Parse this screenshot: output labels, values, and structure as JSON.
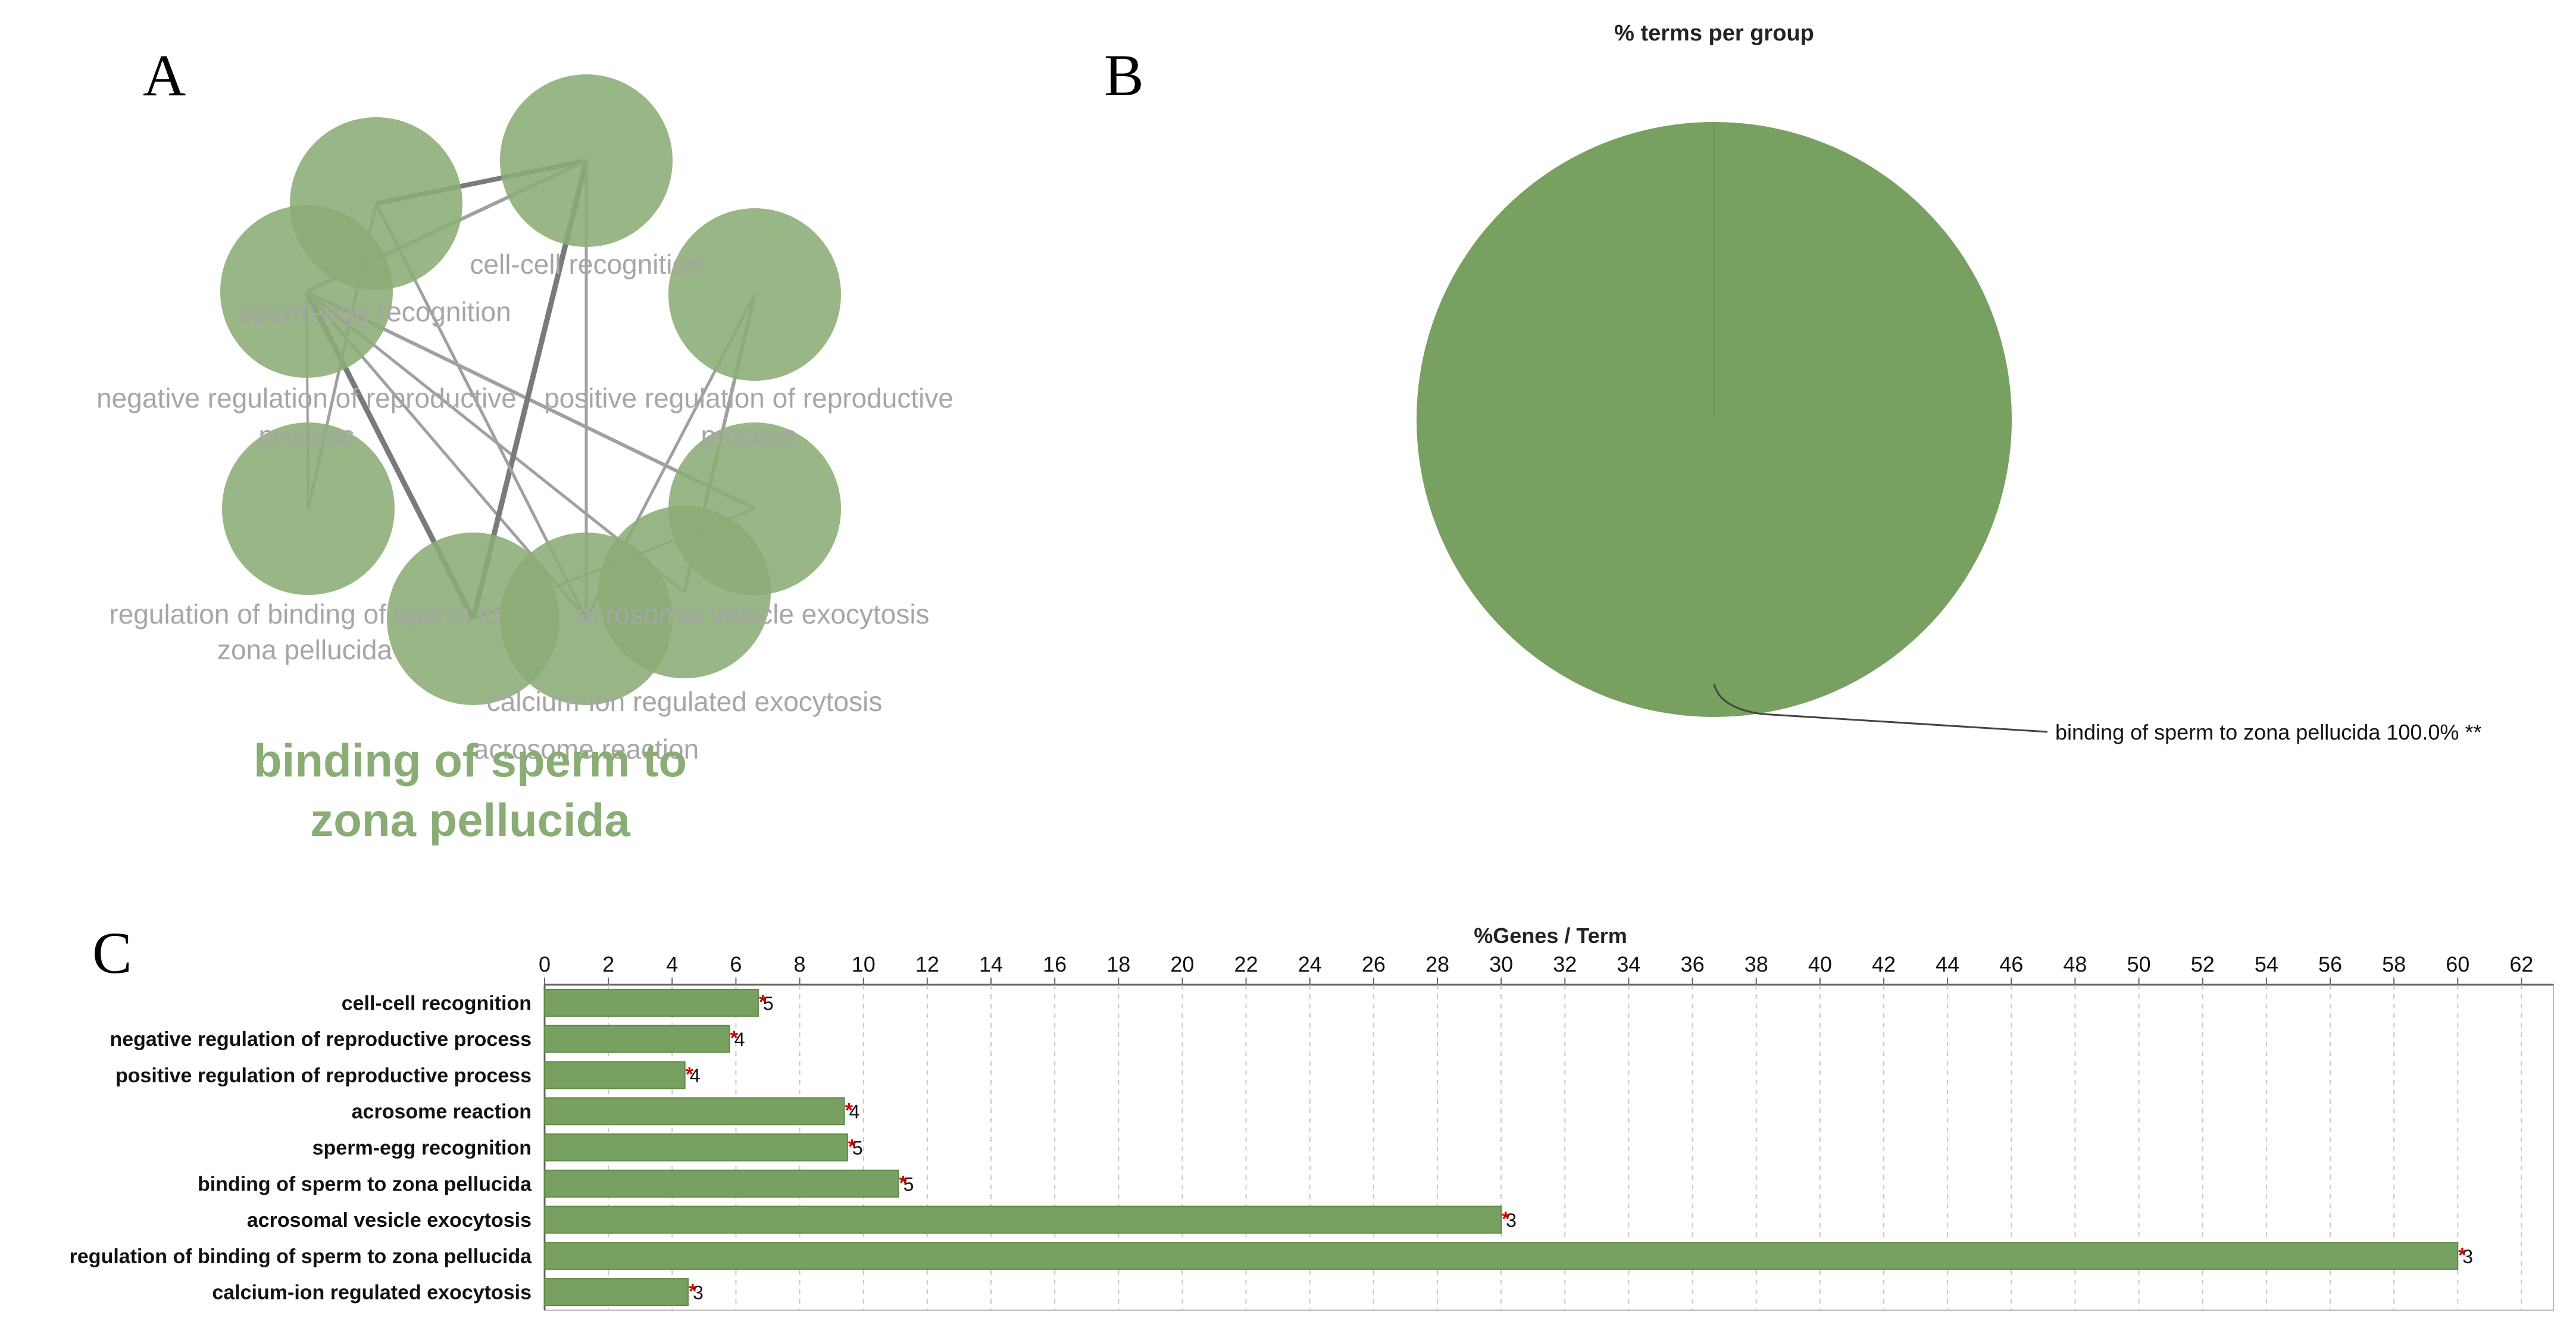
{
  "panels": {
    "a": "A",
    "b": "B",
    "c": "C"
  },
  "network": {
    "node_color": "#8aac75",
    "nodes": [
      {
        "id": "n1",
        "label": "cell-cell recognition"
      },
      {
        "id": "n2",
        "label": "sperm-egg recognition"
      },
      {
        "id": "n3",
        "label": "negative regulation of reproductive process"
      },
      {
        "id": "n4",
        "label": "positive regulation of reproductive process"
      },
      {
        "id": "n5",
        "label": "regulation of binding of sperm to zona pellucida"
      },
      {
        "id": "n6",
        "label": "acrosomal vesicle exocytosis"
      },
      {
        "id": "n7",
        "label": "calcium-ion regulated exocytosis"
      },
      {
        "id": "n8",
        "label": "acrosome reaction"
      },
      {
        "id": "n9",
        "label": "binding of sperm to zona pellucida"
      }
    ],
    "group_label_line1": "binding of sperm to",
    "group_label_line2": "zona pellucida"
  },
  "pie": {
    "title": "% terms per group",
    "color": "#78a060",
    "label": "binding of sperm to zona pellucida 100.0% **"
  },
  "chart_data": {
    "type": "bar",
    "orientation": "horizontal",
    "title": "%Genes / Term",
    "xlabel": "%Genes / Term",
    "ylabel": "",
    "xlim": [
      0,
      63
    ],
    "x_ticks": [
      0,
      2,
      4,
      6,
      8,
      10,
      12,
      14,
      16,
      18,
      20,
      22,
      24,
      26,
      28,
      30,
      32,
      34,
      36,
      38,
      40,
      42,
      44,
      46,
      48,
      50,
      52,
      54,
      56,
      58,
      60,
      62
    ],
    "grid": true,
    "bar_color": "#78a060",
    "star_color": "#cc0000",
    "categories": [
      "cell-cell recognition",
      "negative regulation of reproductive process",
      "positive regulation of reproductive process",
      "acrosome reaction",
      "sperm-egg recognition",
      "binding of sperm to zona pellucida",
      "acrosomal vesicle exocytosis",
      "regulation of binding of sperm to zona pellucida",
      "calcium-ion regulated exocytosis"
    ],
    "values": [
      6.7,
      5.8,
      4.4,
      9.4,
      9.5,
      11.1,
      30.0,
      60.0,
      4.5
    ],
    "counts": [
      "5",
      "4",
      "4",
      "4",
      "5",
      "5",
      "3",
      "3",
      "3"
    ],
    "stars": [
      "*",
      "*",
      "*",
      "*",
      "*",
      "*",
      "*",
      "*",
      "*"
    ]
  }
}
